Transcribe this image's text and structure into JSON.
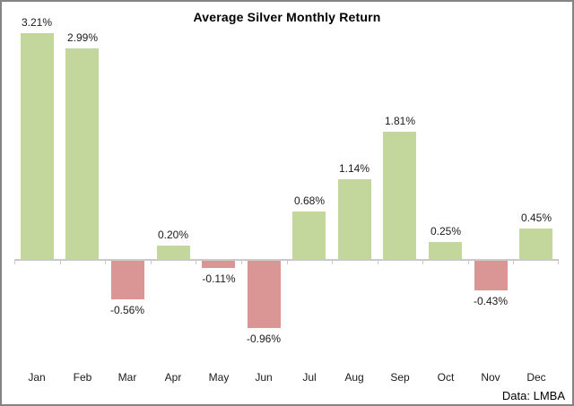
{
  "title": "Average Silver Monthly Return",
  "source_note": "Data: LMBA",
  "chart_data": {
    "type": "bar",
    "title": "Average Silver Monthly Return",
    "categories": [
      "Jan",
      "Feb",
      "Mar",
      "Apr",
      "May",
      "Jun",
      "Jul",
      "Aug",
      "Sep",
      "Oct",
      "Nov",
      "Dec"
    ],
    "values": [
      3.21,
      2.99,
      -0.56,
      0.2,
      -0.11,
      -0.96,
      0.68,
      1.14,
      1.81,
      0.25,
      -0.43,
      0.45
    ],
    "labels": [
      "3.21%",
      "2.99%",
      "-0.56%",
      "0.20%",
      "-0.11%",
      "-0.96%",
      "0.68%",
      "1.14%",
      "1.81%",
      "0.25%",
      "-0.43%",
      "0.45%"
    ],
    "xlabel": "",
    "ylabel": "",
    "ylim": [
      -1.2,
      3.5
    ],
    "grid": false,
    "legend": "none",
    "data_labels": true,
    "source": "Data: LMBA",
    "colors": {
      "positive": "#c3d69b",
      "negative": "#d99694",
      "axis": "#c9c9c9",
      "label_text": "#1a1a1a",
      "frame_border": "#848484"
    }
  }
}
